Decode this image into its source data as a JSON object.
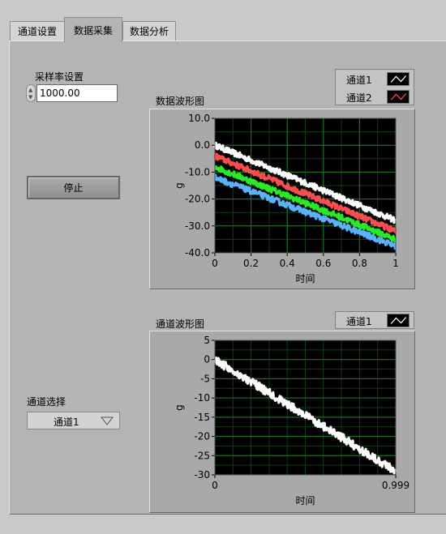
{
  "tabs": [
    {
      "label": "通道设置",
      "active": false
    },
    {
      "label": "数据采集",
      "active": true
    },
    {
      "label": "数据分析",
      "active": false
    }
  ],
  "sample_rate": {
    "label": "采样率设置",
    "value": "1000.00"
  },
  "stop_button": {
    "label": "停止"
  },
  "channel_select": {
    "label": "通道选择",
    "value": "通道1"
  },
  "graph1": {
    "title": "数据波形图",
    "legend": [
      {
        "name": "通道1",
        "color": "#000000"
      },
      {
        "name": "通道2",
        "color": "#ff3b3b"
      }
    ]
  },
  "graph2": {
    "title": "通道波形图",
    "legend": [
      {
        "name": "通道1",
        "color": "#000000"
      }
    ]
  },
  "chart_data": [
    {
      "type": "line",
      "title": "数据波形图",
      "xlabel": "时间",
      "ylabel": "g",
      "xlim": [
        0,
        1
      ],
      "ylim": [
        -40,
        10
      ],
      "x_ticks": [
        "0",
        "0.2",
        "0.4",
        "0.6",
        "0.8",
        "1"
      ],
      "y_ticks": [
        "10.0",
        "0.0",
        "-10.0",
        "-20.0",
        "-30.0",
        "-40.0"
      ],
      "grid": true,
      "series": [
        {
          "name": "通道1",
          "color": "#ffffff",
          "x": [
            0,
            1
          ],
          "y": [
            0,
            -28
          ]
        },
        {
          "name": "通道2",
          "color": "#ff4c4c",
          "x": [
            0,
            1
          ],
          "y": [
            -4,
            -32
          ]
        },
        {
          "color": "#22ee22",
          "x": [
            0,
            1
          ],
          "y": [
            -8,
            -35
          ]
        },
        {
          "color": "#55b4ff",
          "x": [
            0,
            1
          ],
          "y": [
            -12,
            -37.5
          ]
        }
      ]
    },
    {
      "type": "line",
      "title": "通道波形图",
      "xlabel": "时间",
      "ylabel": "g",
      "xlim": [
        0,
        0.999
      ],
      "ylim": [
        -30,
        5
      ],
      "x_ticks": [
        "0",
        "0.999"
      ],
      "y_ticks": [
        "5",
        "0",
        "-5",
        "-10",
        "-15",
        "-20",
        "-25",
        "-30"
      ],
      "grid": true,
      "series": [
        {
          "name": "通道1",
          "color": "#ffffff",
          "x": [
            0,
            0.999
          ],
          "y": [
            0,
            -29
          ]
        }
      ]
    }
  ]
}
